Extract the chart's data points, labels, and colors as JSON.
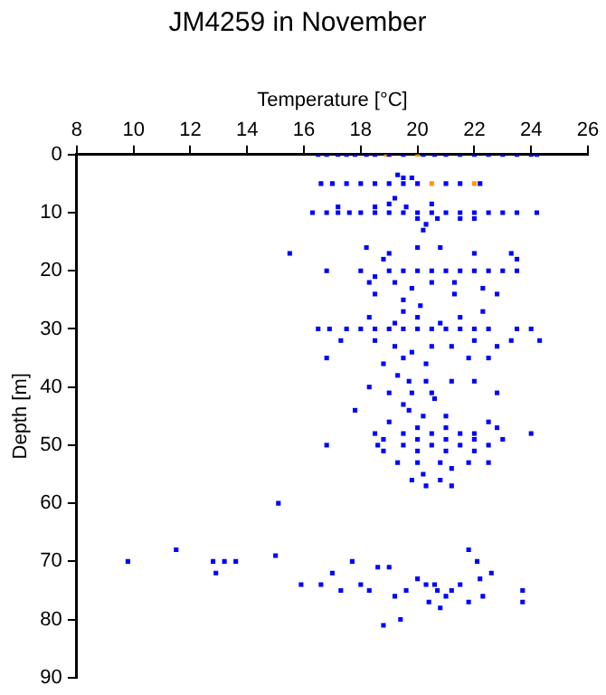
{
  "chart_data": {
    "type": "scatter",
    "title": "JM4259 in November",
    "xlabel": "Temperature [°C]",
    "ylabel": "Depth [m]",
    "xlim": [
      8,
      26
    ],
    "xticks": [
      8,
      10,
      12,
      14,
      16,
      18,
      20,
      22,
      24,
      26
    ],
    "ylim": [
      90,
      0
    ],
    "yticks": [
      0,
      10,
      20,
      30,
      40,
      50,
      60,
      70,
      80,
      90
    ],
    "grid": false,
    "legend": false,
    "marker": "square",
    "series": [
      {
        "color": "#0000ff",
        "x": [
          16.5,
          16.8,
          17.2,
          17.5,
          17.8,
          18.2,
          18.5,
          19.0,
          19.5,
          20.2,
          20.6,
          21.0,
          21.5,
          22.0,
          22.5,
          23.0,
          23.5,
          24.0,
          24.2,
          16.6,
          17.0,
          17.5,
          18.0,
          18.5,
          19.0,
          19.5,
          20.0,
          21.0,
          21.5,
          22.2,
          19.3,
          19.5,
          19.8,
          16.3,
          16.8,
          17.2,
          17.6,
          18.0,
          18.5,
          19.0,
          19.5,
          20.0,
          20.5,
          21.0,
          21.5,
          22.0,
          22.5,
          23.0,
          23.5,
          24.2,
          19.2,
          19.0,
          19.6,
          20.5,
          20.0,
          20.3,
          20.7,
          21.5,
          22.0,
          18.5,
          17.2,
          20.2,
          15.5,
          18.2,
          18.8,
          19.0,
          20.0,
          20.8,
          22.0,
          23.3,
          23.5,
          16.8,
          18.0,
          18.5,
          19.0,
          19.5,
          20.0,
          20.5,
          21.0,
          21.5,
          22.0,
          22.5,
          23.0,
          23.5,
          18.3,
          19.2,
          19.8,
          20.5,
          21.3,
          22.3,
          18.5,
          19.5,
          21.3,
          22.8,
          20.1,
          16.5,
          16.9,
          17.5,
          18.0,
          18.5,
          19.0,
          19.5,
          20.0,
          20.5,
          21.0,
          21.5,
          22.0,
          22.5,
          23.5,
          24.0,
          19.5,
          20.0,
          18.3,
          21.5,
          22.3,
          19.2,
          20.8,
          17.3,
          18.5,
          19.2,
          19.8,
          20.5,
          21.2,
          22.0,
          22.8,
          23.3,
          24.3,
          19.5,
          20.3,
          18.8,
          16.8,
          21.8,
          22.5,
          19.3,
          19.7,
          20.3,
          21.2,
          22.0,
          18.3,
          19.0,
          19.8,
          20.5,
          22.8,
          20.6,
          17.8,
          19.5,
          19.7,
          20.2,
          21.0,
          19.0,
          20.0,
          21.0,
          22.5,
          22.8,
          24.0,
          18.5,
          19.5,
          20.5,
          21.5,
          22.0,
          18.8,
          20.0,
          21.0,
          22.0,
          23.0,
          16.8,
          18.6,
          19.5,
          20.5,
          21.5,
          22.5,
          18.8,
          20.0,
          21.0,
          22.0,
          19.3,
          20.0,
          20.8,
          21.8,
          22.5,
          20.2,
          21.2,
          19.8,
          20.8,
          20.3,
          21.2,
          15.1,
          9.8,
          11.5,
          12.8,
          12.9,
          13.2,
          13.6,
          15.0,
          15.9,
          16.6,
          17.0,
          17.3,
          17.7,
          18.0,
          18.3,
          18.6,
          19.0,
          19.2,
          19.6,
          20.0,
          20.3,
          20.4,
          20.7,
          20.8,
          21.2,
          21.5,
          21.8,
          21.8,
          22.1,
          22.2,
          22.3,
          22.6,
          23.7,
          23.7,
          19.4,
          18.8,
          21.0,
          20.6
        ],
        "values": [
          0,
          0,
          0,
          0,
          0,
          0,
          0,
          0,
          0,
          0,
          0,
          0,
          0,
          0,
          0,
          0,
          0,
          0,
          0,
          5,
          5,
          5,
          5,
          5,
          5,
          5,
          5,
          5,
          5,
          5,
          3.5,
          4,
          4,
          10,
          10,
          10,
          10,
          10,
          10,
          10,
          10,
          10,
          10,
          10,
          10,
          10,
          10,
          10,
          10,
          10,
          7.5,
          8.5,
          9,
          8.5,
          11,
          12,
          11,
          11,
          11,
          9,
          9,
          13,
          17,
          16,
          18,
          17,
          16,
          16,
          17,
          17,
          18,
          20,
          20,
          21,
          20,
          20,
          20,
          20,
          20,
          20,
          20,
          20,
          20,
          20,
          22,
          22,
          23,
          22,
          22,
          23,
          24,
          25,
          24,
          24,
          26,
          30,
          30,
          30,
          30,
          30,
          30,
          30,
          30,
          30,
          30,
          30,
          30,
          30,
          30,
          30,
          27,
          28,
          28,
          28,
          27,
          29,
          29,
          32,
          32,
          33,
          34,
          33,
          33,
          32,
          33,
          32,
          32,
          35,
          36,
          36,
          35,
          35,
          35,
          38,
          39,
          39,
          39,
          39,
          40,
          41,
          41,
          41,
          41,
          42,
          44,
          43,
          44,
          45,
          45,
          46,
          47,
          47,
          46,
          47,
          48,
          48,
          48,
          48,
          48,
          48,
          49,
          49,
          49,
          49,
          49,
          50,
          50,
          50,
          50,
          50,
          50,
          51,
          51,
          51,
          51,
          53,
          53,
          53,
          53,
          53,
          55,
          54,
          56,
          56,
          57,
          57,
          60,
          70,
          68,
          70,
          72,
          70,
          70,
          69,
          74,
          74,
          72,
          75,
          70,
          74,
          75,
          71,
          71,
          76,
          75,
          73,
          74,
          77,
          75,
          78,
          75,
          74,
          68,
          77,
          70,
          73,
          76,
          72,
          75,
          77,
          80,
          81,
          76,
          74
        ]
      },
      {
        "color": "#ff9900",
        "x": [
          18.9,
          20.0,
          20.5,
          22.0
        ],
        "values": [
          0,
          0,
          5,
          5
        ]
      }
    ]
  }
}
